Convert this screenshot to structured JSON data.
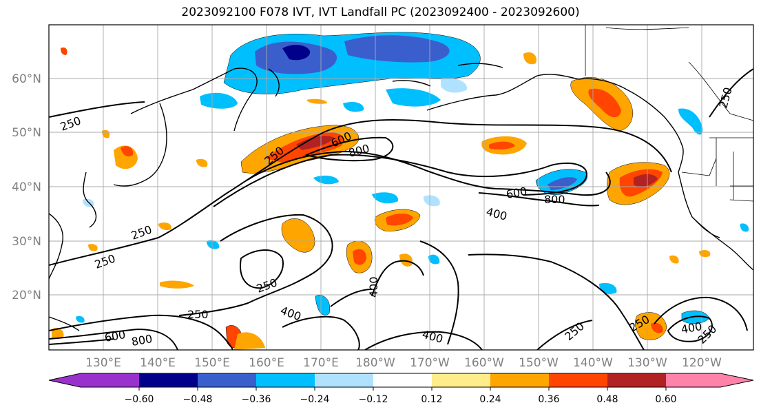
{
  "title": "2023092100 F078 IVT, IVT Landfall PC (2023092400 - 2023092600)",
  "map": {
    "lat_labels": [
      "60°N",
      "50°N",
      "40°N",
      "30°N",
      "20°N"
    ],
    "lon_labels": [
      "130°E",
      "140°E",
      "150°E",
      "160°E",
      "170°E",
      "180°W",
      "170°W",
      "160°W",
      "150°W",
      "140°W",
      "130°W",
      "120°W"
    ],
    "contour_labels": [
      "250",
      "250",
      "250",
      "250",
      "250",
      "250",
      "250",
      "250",
      "250",
      "250",
      "400",
      "400",
      "400",
      "400",
      "400",
      "600",
      "600",
      "600",
      "800",
      "800",
      "800"
    ]
  },
  "colorbar": {
    "ticks": [
      "−0.60",
      "−0.48",
      "−0.36",
      "−0.24",
      "−0.12",
      "0.12",
      "0.24",
      "0.36",
      "0.48",
      "0.60"
    ],
    "colors": [
      "#9932cc",
      "#00008b",
      "#3a5fcd",
      "#00bfff",
      "#b0e2ff",
      "#ffffff",
      "#ffec8b",
      "#ffa500",
      "#ff4500",
      "#b22222",
      "#ff82ab"
    ]
  }
}
